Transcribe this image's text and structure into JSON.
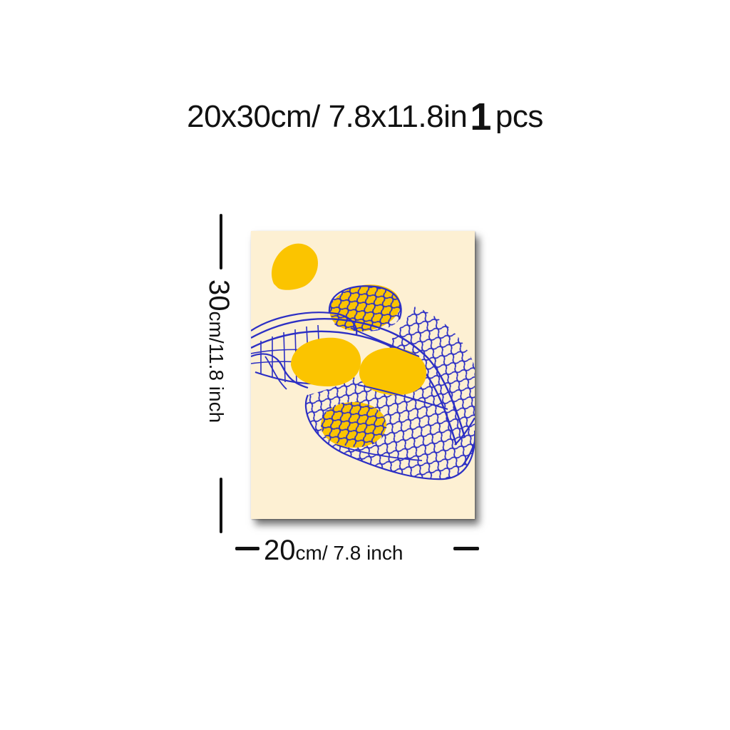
{
  "headline": {
    "size_text": "20x30cm/ 7.8x11.8in",
    "quantity_number": "1",
    "quantity_unit": "pcs"
  },
  "dimensions": {
    "height_number": "30",
    "height_unit_text": "cm/11.8 inch",
    "width_number": "20",
    "width_unit_text": "cm/ 7.8 inch"
  },
  "artwork": {
    "subject": "lemons in a blue string mesh bag",
    "background_color": "#fdf0d3",
    "lemon_color": "#fbc400",
    "net_color": "#2c2fc4"
  }
}
